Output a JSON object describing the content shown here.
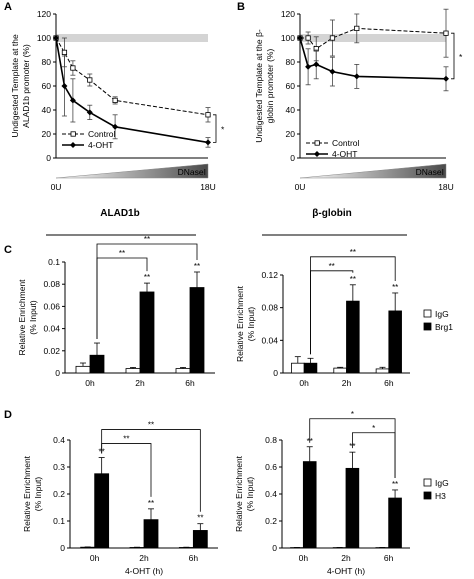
{
  "panel_letters": [
    "A",
    "B",
    "C",
    "D"
  ],
  "chart_data": [
    {
      "id": "A",
      "type": "line",
      "ylabel": "Undigested Template at the ALAD1b promoter (%)",
      "ylabel_lines": [
        "Undigested Template at the",
        "ALAD1b promoter (%)"
      ],
      "ylim": [
        0,
        120
      ],
      "yticks": [
        0,
        20,
        40,
        60,
        80,
        100,
        120
      ],
      "x_range": [
        0,
        18
      ],
      "x_start_label": "0U",
      "x_end_label": "18U",
      "gradient_label": "DNaseI",
      "significance": "*",
      "band_value": 100,
      "series": [
        {
          "name": "Control",
          "style": "dashed-open-square",
          "x": [
            0,
            1,
            2,
            4,
            7,
            18
          ],
          "y": [
            100,
            88,
            75,
            65,
            48,
            36
          ],
          "err": [
            0,
            12,
            6,
            5,
            3,
            6
          ]
        },
        {
          "name": "4-OHT",
          "style": "solid-filled-diamond",
          "x": [
            0,
            1,
            2,
            4,
            7,
            18
          ],
          "y": [
            100,
            60,
            48,
            38,
            26,
            13
          ],
          "err": [
            0,
            25,
            18,
            6,
            10,
            4
          ]
        }
      ]
    },
    {
      "id": "B",
      "type": "line",
      "ylabel": "Undigested Template at the β-globin promoter (%)",
      "ylabel_lines": [
        "Undigested Template at the β-",
        "globin promoter (%)"
      ],
      "ylim": [
        0,
        120
      ],
      "yticks": [
        0,
        20,
        40,
        60,
        80,
        100,
        120
      ],
      "x_range": [
        0,
        18
      ],
      "x_start_label": "0U",
      "x_end_label": "18U",
      "gradient_label": "DNaseI",
      "significance": "*",
      "band_value": 100,
      "series": [
        {
          "name": "Control",
          "style": "dashed-open-square",
          "x": [
            0,
            1,
            2,
            4,
            7,
            18
          ],
          "y": [
            100,
            100,
            91,
            100,
            108,
            104
          ],
          "err": [
            0,
            5,
            10,
            15,
            12,
            20
          ]
        },
        {
          "name": "4-OHT",
          "style": "solid-filled-diamond",
          "x": [
            0,
            1,
            2,
            4,
            7,
            18
          ],
          "y": [
            100,
            76,
            78,
            72,
            68,
            66
          ],
          "err": [
            0,
            15,
            12,
            12,
            10,
            10
          ]
        }
      ]
    },
    {
      "id": "C-left",
      "type": "bar",
      "group_title": "ALAD1b",
      "ylabel_lines": [
        "Relative Enrichment",
        "(% Input)"
      ],
      "ylim": [
        0,
        0.1
      ],
      "yticks": [
        0,
        0.02,
        0.04,
        0.06,
        0.08,
        0.1
      ],
      "ytick_labels": [
        "0",
        "0.02",
        "0.04",
        "0.06",
        "0.08",
        "0.1"
      ],
      "categories": [
        "0h",
        "2h",
        "6h"
      ],
      "series": [
        {
          "name": "IgG",
          "values": [
            0.006,
            0.004,
            0.004
          ],
          "err": [
            0.003,
            0.001,
            0.001
          ]
        },
        {
          "name": "Brg1",
          "values": [
            0.016,
            0.073,
            0.077
          ],
          "err": [
            0.011,
            0.008,
            0.014
          ]
        }
      ],
      "star_labels": [
        "**",
        "**"
      ],
      "brackets": [
        {
          "from": 0,
          "to": 1,
          "label": "**"
        },
        {
          "from": 0,
          "to": 2,
          "label": "**"
        }
      ]
    },
    {
      "id": "C-right",
      "type": "bar",
      "group_title": "β-globin",
      "ylabel_lines": [
        "Relative Enrichment",
        "(% Input)"
      ],
      "ylim": [
        0,
        0.12
      ],
      "yticks": [
        0,
        0.04,
        0.08,
        0.12
      ],
      "ytick_labels": [
        "0",
        "0.04",
        "0.08",
        "0.12"
      ],
      "categories": [
        "0h",
        "2h",
        "6h"
      ],
      "series": [
        {
          "name": "IgG",
          "values": [
            0.012,
            0.006,
            0.005
          ],
          "err": [
            0.008,
            0.001,
            0.002
          ]
        },
        {
          "name": "Brg1",
          "values": [
            0.012,
            0.088,
            0.076
          ],
          "err": [
            0.006,
            0.02,
            0.022
          ]
        }
      ],
      "star_labels": [
        "**",
        "**"
      ],
      "brackets": [
        {
          "from": 0,
          "to": 1,
          "label": "**"
        },
        {
          "from": 0,
          "to": 2,
          "label": "**"
        }
      ],
      "legend": [
        "IgG",
        "Brg1"
      ]
    },
    {
      "id": "D-left",
      "type": "bar",
      "ylabel_lines": [
        "Relative Enrichment",
        "(% Input)"
      ],
      "xlabel": "4-OHT (h)",
      "ylim": [
        0,
        0.4
      ],
      "yticks": [
        0,
        0.1,
        0.2,
        0.3,
        0.4
      ],
      "ytick_labels": [
        "0",
        "0.1",
        "0.2",
        "0.3",
        "0.4"
      ],
      "categories": [
        "0h",
        "2h",
        "6h"
      ],
      "series": [
        {
          "name": "IgG",
          "values": [
            0.003,
            0.002,
            0.002
          ],
          "err": [
            0.001,
            0.001,
            0.001
          ]
        },
        {
          "name": "H3",
          "values": [
            0.275,
            0.105,
            0.065
          ],
          "err": [
            0.06,
            0.04,
            0.025
          ]
        }
      ],
      "star_labels": [
        "**",
        "**",
        "**"
      ],
      "brackets": [
        {
          "from": 0,
          "to": 1,
          "label": "**"
        },
        {
          "from": 0,
          "to": 2,
          "label": "**"
        }
      ]
    },
    {
      "id": "D-right",
      "type": "bar",
      "ylabel_lines": [
        "Relative Enrichment",
        "(% Input)"
      ],
      "xlabel": "4-OHT (h)",
      "ylim": [
        0,
        0.8
      ],
      "yticks": [
        0,
        0.2,
        0.4,
        0.6,
        0.8
      ],
      "ytick_labels": [
        "0",
        "0.2",
        "0.4",
        "0.6",
        "0.8"
      ],
      "categories": [
        "0h",
        "2h",
        "6h"
      ],
      "series": [
        {
          "name": "IgG",
          "values": [
            0.003,
            0.003,
            0.003
          ],
          "err": [
            0.001,
            0.001,
            0.001
          ]
        },
        {
          "name": "H3",
          "values": [
            0.64,
            0.59,
            0.37
          ],
          "err": [
            0.11,
            0.12,
            0.06
          ]
        }
      ],
      "star_labels": [
        "**",
        "**",
        "**"
      ],
      "brackets": [
        {
          "from": 1,
          "to": 2,
          "label": "*"
        },
        {
          "from": 0,
          "to": 2,
          "label": "*"
        }
      ],
      "legend": [
        "IgG",
        "H3"
      ]
    }
  ]
}
